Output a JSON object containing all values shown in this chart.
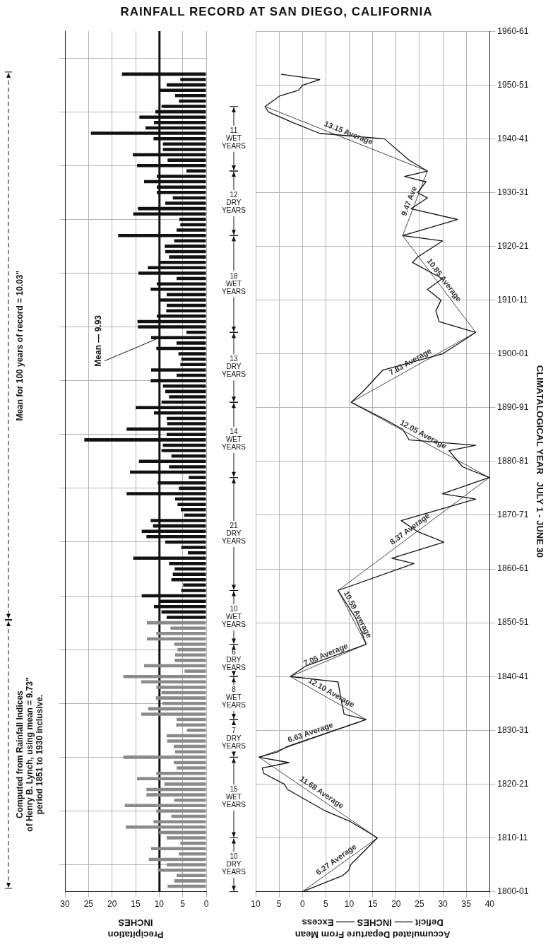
{
  "chart_data": [
    {
      "type": "bar",
      "orientation": "horizontal",
      "title": "RAINFALL RECORD AT SAN DIEGO, CALIFORNIA",
      "xlabel": "Precipitation\nINCHES",
      "xlim": [
        30,
        0
      ],
      "xticks": [
        30,
        25,
        20,
        15,
        10,
        5,
        0
      ],
      "ylim": [
        "1800-01",
        "1960-01"
      ],
      "yticks": [
        {
          "value": "1800-01",
          "label": null
        },
        {
          "value": "1810-01",
          "label": null
        },
        {
          "value": "1820-01",
          "label": null
        },
        {
          "value": "1830-01",
          "label": null
        },
        {
          "value": "1840-01",
          "label": null
        },
        {
          "value": "1850-01",
          "label": null
        },
        {
          "value": "1860-01",
          "label": null
        },
        {
          "value": "1870-01",
          "label": null
        },
        {
          "value": "1880-01",
          "label": null
        },
        {
          "value": "1890-01",
          "label": null
        },
        {
          "value": "1900-01",
          "label": null
        },
        {
          "value": "1910-01",
          "label": null
        },
        {
          "value": "1920-01",
          "label": null
        },
        {
          "value": "1930-01",
          "label": null
        },
        {
          "value": "1940-01",
          "label": null
        },
        {
          "value": "1950-01",
          "label": null
        },
        {
          "value": "1960-01",
          "label": null
        }
      ],
      "tick_labels": "x",
      "grid": true,
      "series": [
        {
          "color": "#8a8a8a",
          "x": [
            "1801-01",
            "1802-01",
            "1803-01",
            "1804-01",
            "1805-01",
            "1806-01",
            "1807-01",
            "1808-01",
            "1809-01",
            "1810-01",
            "1811-01",
            "1812-01",
            "1813-01",
            "1814-01",
            "1815-01",
            "1816-01",
            "1817-01",
            "1818-01",
            "1819-01",
            "1820-01",
            "1821-01",
            "1822-01",
            "1823-01",
            "1824-01",
            "1825-01",
            "1826-01",
            "1827-01",
            "1828-01",
            "1829-01",
            "1830-01",
            "1831-01",
            "1832-01",
            "1833-01",
            "1834-01",
            "1835-01",
            "1836-01",
            "1837-01",
            "1838-01",
            "1839-01",
            "1840-01",
            "1841-01",
            "1842-01",
            "1843-01",
            "1844-01",
            "1845-01",
            "1846-01",
            "1847-01",
            "1848-01",
            "1849-01",
            "1850-01"
          ],
          "values": [
            8.2,
            6.8,
            6.3,
            10.3,
            8.4,
            12.2,
            5.8,
            11.7,
            5.5,
            8.4,
            10.0,
            17.1,
            11.2,
            7.4,
            10.6,
            17.3,
            6.8,
            12.7,
            12.7,
            8.9,
            14.7,
            10.6,
            6.3,
            6.9,
            17.6,
            6.6,
            6.9,
            8.3,
            8.4,
            4.1,
            6.4,
            6.3,
            13.8,
            12.3,
            9.3,
            10.7,
            9.5,
            10.6,
            13.8,
            17.6,
            4.6,
            13.2,
            6.7,
            6.6,
            6.1,
            6.8,
            12.6,
            10.6,
            7.6,
            12.6
          ]
        },
        {
          "color": "#111111",
          "x": [
            "1851-01",
            "1852-01",
            "1853-01",
            "1854-01",
            "1855-01",
            "1856-01",
            "1857-01",
            "1858-01",
            "1859-01",
            "1860-01",
            "1861-01",
            "1862-01",
            "1863-01",
            "1864-01",
            "1865-01",
            "1866-01",
            "1867-01",
            "1868-01",
            "1869-01",
            "1870-01",
            "1871-01",
            "1872-01",
            "1873-01",
            "1874-01",
            "1875-01",
            "1876-01",
            "1877-01",
            "1878-01",
            "1879-01",
            "1880-01",
            "1881-01",
            "1882-01",
            "1883-01",
            "1884-01",
            "1885-01",
            "1886-01",
            "1887-01",
            "1888-01",
            "1889-01",
            "1890-01",
            "1891-01",
            "1892-01",
            "1893-01",
            "1894-01",
            "1895-01",
            "1896-01",
            "1897-01",
            "1898-01",
            "1899-01",
            "1900-01",
            "1901-01",
            "1902-01",
            "1903-01",
            "1904-01",
            "1905-01",
            "1906-01",
            "1907-01",
            "1908-01",
            "1909-01",
            "1910-01",
            "1911-01",
            "1912-01",
            "1913-01",
            "1914-01",
            "1915-01",
            "1916-01",
            "1917-01",
            "1918-01",
            "1919-01",
            "1920-01",
            "1921-01",
            "1922-01",
            "1923-01",
            "1924-01",
            "1925-01",
            "1926-01",
            "1927-01",
            "1928-01",
            "1929-01",
            "1930-01",
            "1931-01",
            "1932-01",
            "1933-01",
            "1934-01",
            "1935-01",
            "1936-01",
            "1937-01",
            "1938-01",
            "1939-01",
            "1940-01",
            "1941-01",
            "1942-01",
            "1943-01",
            "1944-01",
            "1945-01",
            "1946-01",
            "1947-01",
            "1948-01",
            "1949-01",
            "1950-01",
            "1951-01",
            "1952-01"
          ],
          "values": [
            8.4,
            9.5,
            11.1,
            10.0,
            13.7,
            5.3,
            4.9,
            7.4,
            7.1,
            6.7,
            7.9,
            15.5,
            3.9,
            5.3,
            8.7,
            12.7,
            13.7,
            11.3,
            11.8,
            4.7,
            5.4,
            6.1,
            6.6,
            16.9,
            5.8,
            10.3,
            3.7,
            16.2,
            7.9,
            14.3,
            7.4,
            9.5,
            9.2,
            25.9,
            8.4,
            16.9,
            8.3,
            8.4,
            11.1,
            15.0,
            9.5,
            7.9,
            8.7,
            9.2,
            11.8,
            6.3,
            11.7,
            5.5,
            5.3,
            5.9,
            10.6,
            6.3,
            11.7,
            4.2,
            14.5,
            14.6,
            10.5,
            8.5,
            8.4,
            10.0,
            8.4,
            11.8,
            10.5,
            6.3,
            14.4,
            12.4,
            10.1,
            7.9,
            8.7,
            8.8,
            6.8,
            18.7,
            6.3,
            5.5,
            5.7,
            15.5,
            14.5,
            8.7,
            7.1,
            10.5,
            10.5,
            13.2,
            10.5,
            4.2,
            14.7,
            8.2,
            15.6,
            9.2,
            9.2,
            11.2,
            24.5,
            12.9,
            11.1,
            14.2,
            10.8,
            9.5,
            5.8,
            6.6,
            10.0,
            8.4,
            5.5,
            17.9
          ]
        }
      ],
      "ref_lines": [
        {
          "axis": "x",
          "value": 9.93,
          "label": "Mean — 9.93"
        }
      ],
      "annotations": [
        "Computed from Rainfall Indices\nof Henry B. Lynch, using mean = 9.73\"\nperiod 1851 to 1930 inclusive.",
        "Mean for 100 years of record = 10.03\""
      ]
    },
    {
      "type": "line",
      "orientation": "horizontal",
      "xlabel": "Accumulated Departure From Mean\nDeficit —— INCHES —— Excess",
      "ylabel": "CLIMATALOGICAL YEAR   JULY 1 - JUNE 30",
      "xlim": [
        -10,
        40
      ],
      "xticks": [
        {
          "value": -10,
          "label": "10"
        },
        {
          "value": -5,
          "label": "5"
        },
        0,
        5,
        10,
        15,
        20,
        25,
        30,
        35,
        40
      ],
      "ylim": [
        "1800-01",
        "1960-01"
      ],
      "yticks": [
        {
          "value": "1800-01",
          "label": "1800-01"
        },
        {
          "value": "1810-01",
          "label": "1810-11"
        },
        {
          "value": "1820-01",
          "label": "1820-21"
        },
        {
          "value": "1830-01",
          "label": "1830-31"
        },
        {
          "value": "1840-01",
          "label": "1840-41"
        },
        {
          "value": "1850-01",
          "label": "1850-51"
        },
        {
          "value": "1860-01",
          "label": "1860-61"
        },
        {
          "value": "1870-01",
          "label": "1870-71"
        },
        {
          "value": "1880-01",
          "label": "1880-81"
        },
        {
          "value": "1890-01",
          "label": "1890-91"
        },
        {
          "value": "1900-01",
          "label": "1900-01"
        },
        {
          "value": "1910-01",
          "label": "1910-11"
        },
        {
          "value": "1920-01",
          "label": "1920-21"
        },
        {
          "value": "1930-01",
          "label": "1930-31"
        },
        {
          "value": "1940-01",
          "label": "1940-41"
        },
        {
          "value": "1950-01",
          "label": "1950-51"
        },
        {
          "value": "1960-01",
          "label": "1960-61"
        }
      ],
      "grid": true,
      "series": [
        {
          "color": "#111111",
          "x": [
            "1800-01",
            "1803-01",
            "1804-01",
            "1805-01",
            "1810-01",
            "1813-01",
            "1815-01",
            "1819-01",
            "1820-01",
            "1822-01",
            "1823-01",
            "1824-01",
            "1825-01",
            "1826-01",
            "1827-01",
            "1828-01",
            "1832-01",
            "1833-01",
            "1836-01",
            "1839-01",
            "1840-01",
            "1842-01",
            "1846-01",
            "1849-01",
            "1851-01",
            "1856-01",
            "1861-01",
            "1862-01",
            "1865-01",
            "1867-01",
            "1869-01",
            "1873-01",
            "1874-01",
            "1877-01",
            "1879-01",
            "1882-01",
            "1883-01",
            "1884-01",
            "1886-01",
            "1888-01",
            "1891-01",
            "1893-01",
            "1897-01",
            "1900-01",
            "1902-01",
            "1904-01",
            "1906-01",
            "1908-01",
            "1910-01",
            "1912-01",
            "1914-01",
            "1917-01",
            "1918-01",
            "1921-01",
            "1922-01",
            "1925-01",
            "1927-01",
            "1929-01",
            "1930-01",
            "1932-01",
            "1933-01",
            "1934-01",
            "1936-01",
            "1940-01",
            "1941-01",
            "1943-01",
            "1945-01",
            "1946-01",
            "1948-01",
            "1949-01",
            "1950-01",
            "1951-01",
            "1952-01"
          ],
          "values": [
            0,
            8.6,
            9.9,
            10.3,
            16.0,
            10.3,
            4.9,
            -3.2,
            -3.9,
            -8.3,
            -8.6,
            -2.9,
            -9.3,
            -5.3,
            -3.2,
            0.1,
            13.6,
            8.9,
            8.2,
            7.6,
            -2.6,
            0.8,
            13.6,
            12.3,
            11.3,
            7.6,
            23.8,
            19.1,
            30.2,
            24.5,
            21.1,
            37.0,
            29.9,
            39.9,
            34.2,
            31.3,
            37.0,
            22.8,
            21.4,
            17.2,
            10.4,
            12.9,
            17.2,
            29.9,
            33.5,
            37.0,
            29.2,
            28.5,
            29.6,
            26.7,
            29.9,
            23.5,
            24.6,
            29.9,
            21.4,
            33.1,
            23.2,
            26.7,
            24.6,
            26.4,
            21.8,
            26.7,
            22.8,
            17.5,
            3.7,
            -2.0,
            -7.3,
            -8.0,
            -4.8,
            -0.9,
            0.1,
            3.7,
            -4.5
          ]
        },
        {
          "name": "6.27 Average",
          "color": "#333333",
          "x": [
            "1800-01",
            "1810-01"
          ],
          "values": [
            0,
            16.0
          ]
        },
        {
          "name": "11.68 Average",
          "color": "#333333",
          "x": [
            "1810-01",
            "1825-01"
          ],
          "values": [
            16.0,
            -9.3
          ]
        },
        {
          "name": "6.63 Average",
          "color": "#333333",
          "x": [
            "1825-01",
            "1832-01"
          ],
          "values": [
            -9.3,
            13.6
          ]
        },
        {
          "name": "12.10 Average",
          "color": "#333333",
          "x": [
            "1832-01",
            "1840-01"
          ],
          "values": [
            13.6,
            -2.6
          ]
        },
        {
          "name": "7.05 Average",
          "color": "#333333",
          "x": [
            "1840-01",
            "1846-01"
          ],
          "values": [
            -2.6,
            13.6
          ]
        },
        {
          "name": "10.59 Average",
          "color": "#333333",
          "x": [
            "1846-01",
            "1856-01"
          ],
          "values": [
            13.6,
            7.6
          ]
        },
        {
          "name": "8.37 Average",
          "color": "#333333",
          "x": [
            "1856-01",
            "1877-01"
          ],
          "values": [
            7.6,
            39.9
          ]
        },
        {
          "name": "12.05 Average",
          "color": "#333333",
          "x": [
            "1877-01",
            "1891-01"
          ],
          "values": [
            39.9,
            10.4
          ]
        },
        {
          "name": "7.83 Average",
          "color": "#333333",
          "x": [
            "1891-01",
            "1904-01"
          ],
          "values": [
            10.4,
            37.0
          ]
        },
        {
          "name": "10.85 Average",
          "color": "#333333",
          "x": [
            "1904-01",
            "1922-01"
          ],
          "values": [
            37.0,
            21.4
          ]
        },
        {
          "name": "9.47 Ave",
          "color": "#333333",
          "x": [
            "1922-01",
            "1934-01"
          ],
          "values": [
            21.4,
            26.7
          ]
        },
        {
          "name": "13.15 Average",
          "color": "#333333",
          "x": [
            "1934-01",
            "1946-01"
          ],
          "values": [
            26.7,
            -8.0
          ]
        }
      ],
      "annotations": [
        "10 DRY YEARS",
        "15 WET YEARS",
        "7 DRY YEARS",
        "8 WET YEARS",
        "6 DRY YEARS",
        "10 WET YEARS",
        "21 DRY YEARS",
        "14 WET YEARS",
        "13 DRY YEARS",
        "18 WET YEARS",
        "12 DRY YEARS",
        "11 WET YEARS"
      ]
    }
  ]
}
